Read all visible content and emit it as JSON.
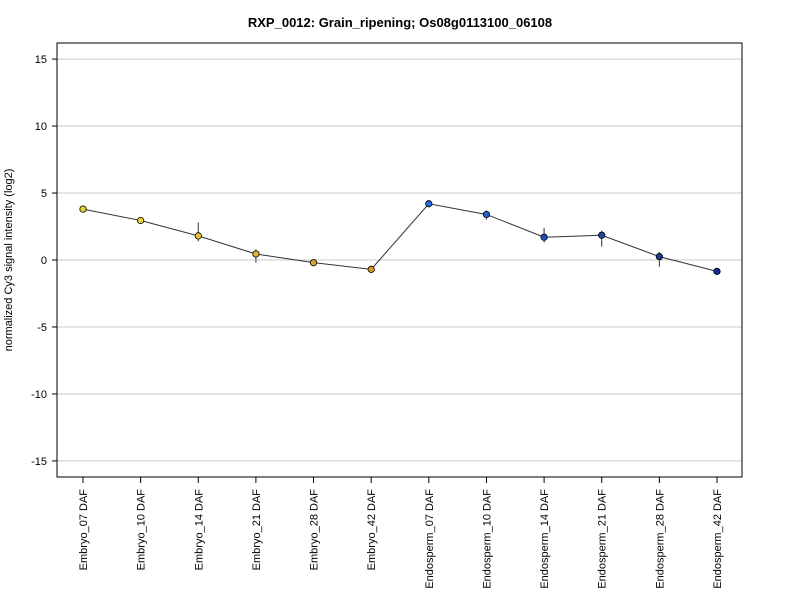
{
  "chart_data": {
    "type": "line",
    "title": "RXP_0012: Grain_ripening; Os08g0113100_06108",
    "ylabel": "normalized Cy3 signal intensity (log2)",
    "xlabel": "",
    "ylim": [
      -16.2,
      16.2
    ],
    "yticks": [
      15,
      10,
      5,
      0,
      -5,
      -10,
      -15
    ],
    "ytick_labels": [
      "15",
      "10",
      "5",
      "0",
      "-5",
      "-10",
      "-15"
    ],
    "grid": "horizontal",
    "categories": [
      "Embryo_07 DAF",
      "Embryo_10 DAF",
      "Embryo_14 DAF",
      "Embryo_21 DAF",
      "Embryo_28 DAF",
      "Embryo_42 DAF",
      "Endosperm_07 DAF",
      "Endosperm_10 DAF",
      "Endosperm_14 DAF",
      "Endosperm_21 DAF",
      "Endosperm_28 DAF",
      "Endosperm_42 DAF"
    ],
    "values": [
      3.8,
      2.95,
      1.8,
      0.45,
      -0.2,
      -0.7,
      4.2,
      3.4,
      1.7,
      1.85,
      0.25,
      -0.85
    ],
    "error_low": [
      3.6,
      2.8,
      1.4,
      -0.2,
      -0.3,
      -0.8,
      4.0,
      3.0,
      1.3,
      1.0,
      -0.5,
      -0.95
    ],
    "error_high": [
      4.0,
      3.1,
      2.8,
      0.8,
      -0.1,
      -0.6,
      4.4,
      3.7,
      2.4,
      2.2,
      0.6,
      -0.75
    ],
    "point_colors": [
      "#e8d033",
      "#e8d033",
      "#e8c533",
      "#e0b52e",
      "#d9a62b",
      "#d49a28",
      "#2a6ad4",
      "#245ec8",
      "#2050b8",
      "#1c44aa",
      "#18389c",
      "#142c8e"
    ],
    "line_color": "#333333",
    "grid_color": "#c8c8c8"
  }
}
